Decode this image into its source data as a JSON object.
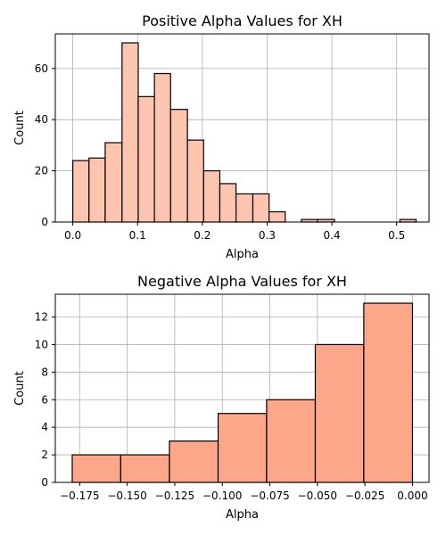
{
  "chart_data": [
    {
      "type": "bar",
      "title": "Positive Alpha Values for XH",
      "xlabel": "Alpha",
      "ylabel": "Count",
      "grid": true,
      "bar_color": "#fcc5b0",
      "edge_color": "#000000",
      "xlim": [
        -0.027,
        0.55
      ],
      "ylim": [
        0,
        73.5
      ],
      "xticks": [
        0.0,
        0.1,
        0.2,
        0.3,
        0.4,
        0.5
      ],
      "xtick_labels": [
        "0.0",
        "0.1",
        "0.2",
        "0.3",
        "0.4",
        "0.5"
      ],
      "yticks": [
        0,
        20,
        40,
        60
      ],
      "ytick_labels": [
        "0",
        "20",
        "40",
        "60"
      ],
      "bins": [
        {
          "x0": 0.0,
          "x1": 0.025,
          "count": 24
        },
        {
          "x0": 0.025,
          "x1": 0.05,
          "count": 25
        },
        {
          "x0": 0.05,
          "x1": 0.076,
          "count": 31
        },
        {
          "x0": 0.076,
          "x1": 0.101,
          "count": 70
        },
        {
          "x0": 0.101,
          "x1": 0.126,
          "count": 49
        },
        {
          "x0": 0.126,
          "x1": 0.151,
          "count": 58
        },
        {
          "x0": 0.151,
          "x1": 0.177,
          "count": 44
        },
        {
          "x0": 0.177,
          "x1": 0.202,
          "count": 32
        },
        {
          "x0": 0.202,
          "x1": 0.227,
          "count": 20
        },
        {
          "x0": 0.227,
          "x1": 0.252,
          "count": 15
        },
        {
          "x0": 0.252,
          "x1": 0.278,
          "count": 11
        },
        {
          "x0": 0.278,
          "x1": 0.303,
          "count": 11
        },
        {
          "x0": 0.303,
          "x1": 0.328,
          "count": 4
        },
        {
          "x0": 0.328,
          "x1": 0.353,
          "count": 0
        },
        {
          "x0": 0.353,
          "x1": 0.378,
          "count": 1
        },
        {
          "x0": 0.378,
          "x1": 0.404,
          "count": 1
        },
        {
          "x0": 0.404,
          "x1": 0.429,
          "count": 0
        },
        {
          "x0": 0.429,
          "x1": 0.454,
          "count": 0
        },
        {
          "x0": 0.454,
          "x1": 0.479,
          "count": 0
        },
        {
          "x0": 0.479,
          "x1": 0.505,
          "count": 0
        },
        {
          "x0": 0.505,
          "x1": 0.53,
          "count": 1
        }
      ]
    },
    {
      "type": "bar",
      "title": "Negative Alpha Values for XH",
      "xlabel": "Alpha",
      "ylabel": "Count",
      "grid": true,
      "bar_color": "#fca68a",
      "edge_color": "#000000",
      "xlim": [
        -0.1878,
        0.0087
      ],
      "ylim": [
        0,
        13.65
      ],
      "xticks": [
        -0.175,
        -0.15,
        -0.125,
        -0.1,
        -0.075,
        -0.05,
        -0.025,
        0.0
      ],
      "xtick_labels": [
        "−0.175",
        "−0.150",
        "−0.125",
        "−0.100",
        "−0.075",
        "−0.050",
        "−0.025",
        "0.000"
      ],
      "yticks": [
        0,
        2,
        4,
        6,
        8,
        10,
        12
      ],
      "ytick_labels": [
        "0",
        "2",
        "4",
        "6",
        "8",
        "10",
        "12"
      ],
      "bins": [
        {
          "x0": -0.1789,
          "x1": -0.1534,
          "count": 2
        },
        {
          "x0": -0.1534,
          "x1": -0.1278,
          "count": 2
        },
        {
          "x0": -0.1278,
          "x1": -0.1022,
          "count": 3
        },
        {
          "x0": -0.1022,
          "x1": -0.0767,
          "count": 5
        },
        {
          "x0": -0.0767,
          "x1": -0.0511,
          "count": 6
        },
        {
          "x0": -0.0511,
          "x1": -0.0256,
          "count": 10
        },
        {
          "x0": -0.0256,
          "x1": 0.0,
          "count": 13
        }
      ]
    }
  ]
}
